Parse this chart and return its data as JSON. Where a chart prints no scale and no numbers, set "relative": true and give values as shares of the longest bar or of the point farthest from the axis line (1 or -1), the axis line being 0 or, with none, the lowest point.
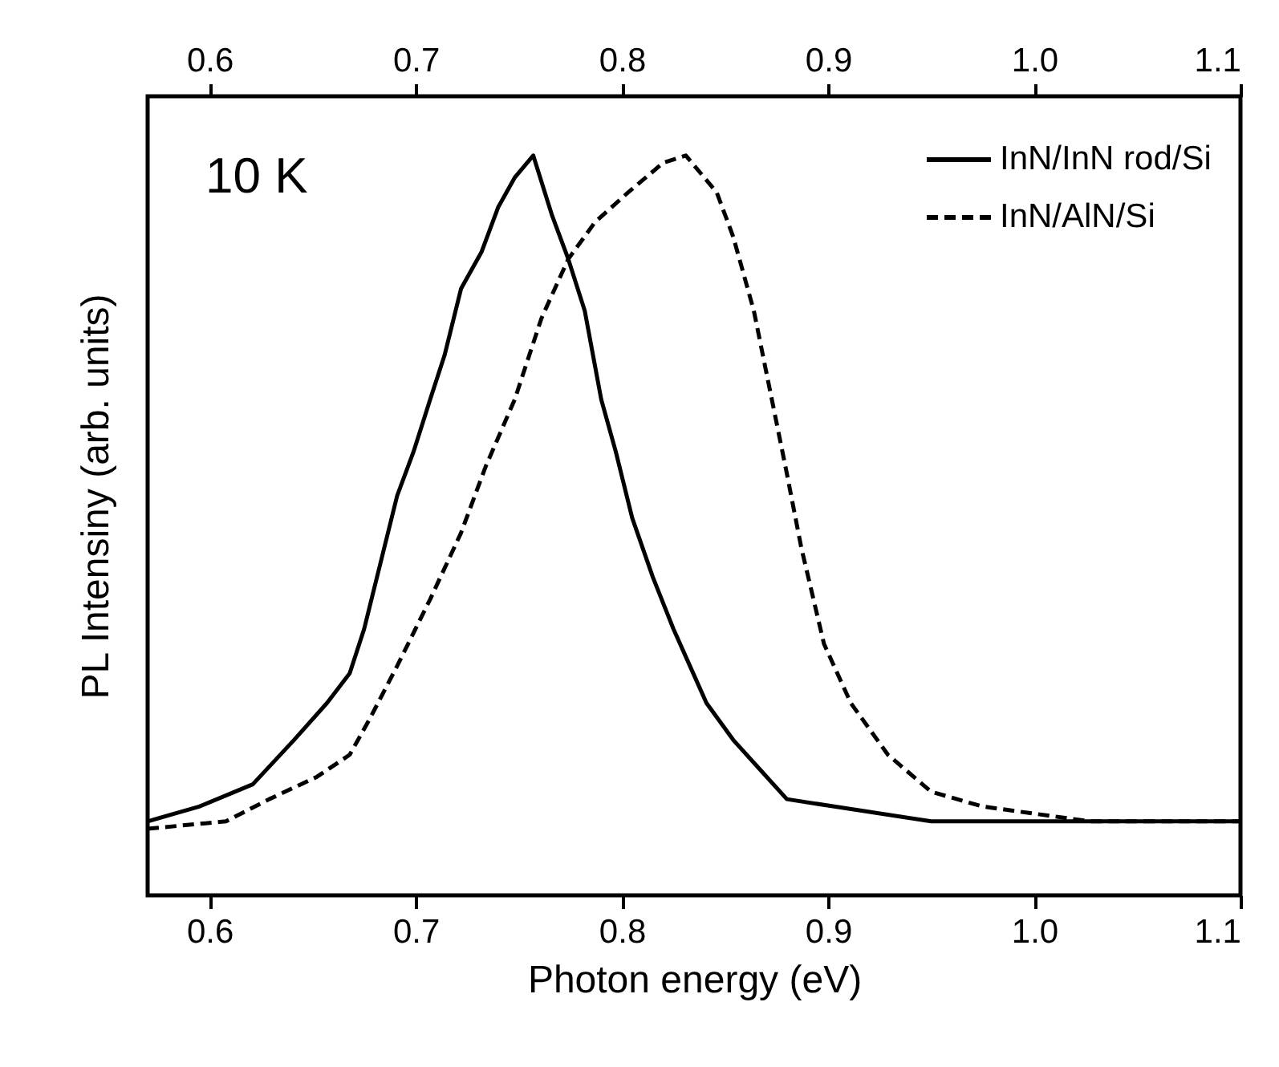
{
  "chart_data": {
    "type": "line",
    "relative": true,
    "xlabel": "Photon energy (eV)",
    "ylabel": "PL Intensiny (arb. units)",
    "annotations": [
      "10 K"
    ],
    "xlim": [
      0.57,
      1.1
    ],
    "xticks": [
      0.6,
      0.7,
      0.8,
      0.9,
      {
        "value": 1,
        "label": "1.0"
      },
      1.1
    ],
    "x2lim": [
      0.57,
      1.1
    ],
    "x2ticks": [
      0.6,
      0.7,
      0.8,
      0.9,
      {
        "value": 1,
        "label": "1.0"
      },
      1.1
    ],
    "tick_labels": "x",
    "legend": "top right",
    "marker": "none",
    "series": [
      {
        "name": "InN/InN rod/Si",
        "color": "#000000",
        "line_style": "solid",
        "x": [
          0.57,
          0.595,
          0.621,
          0.641,
          0.657,
          0.668,
          0.675,
          0.683,
          0.691,
          0.699,
          0.707,
          0.714,
          0.722,
          0.732,
          0.74,
          0.748,
          0.757,
          0.766,
          0.774,
          0.782,
          0.79,
          0.797,
          0.805,
          0.815,
          0.825,
          0.833,
          0.841,
          0.854,
          0.867,
          0.88,
          0.903,
          0.95,
          1.002,
          1.053,
          1.1
        ],
        "values": [
          0.1,
          0.12,
          0.15,
          0.21,
          0.26,
          0.3,
          0.36,
          0.45,
          0.54,
          0.6,
          0.67,
          0.73,
          0.82,
          0.87,
          0.93,
          0.97,
          1.0,
          0.92,
          0.86,
          0.79,
          0.67,
          0.6,
          0.51,
          0.43,
          0.36,
          0.31,
          0.26,
          0.21,
          0.17,
          0.13,
          0.12,
          0.1,
          0.1,
          0.1,
          0.1
        ]
      },
      {
        "name": "InN/AlN/Si",
        "color": "#000000",
        "line_style": "dashed",
        "x": [
          0.57,
          0.608,
          0.629,
          0.652,
          0.668,
          0.678,
          0.691,
          0.707,
          0.722,
          0.734,
          0.748,
          0.761,
          0.774,
          0.787,
          0.803,
          0.82,
          0.831,
          0.846,
          0.854,
          0.864,
          0.872,
          0.88,
          0.887,
          0.898,
          0.911,
          0.929,
          0.95,
          0.975,
          1.027,
          1.1
        ],
        "values": [
          0.09,
          0.1,
          0.13,
          0.16,
          0.19,
          0.24,
          0.31,
          0.4,
          0.49,
          0.58,
          0.67,
          0.78,
          0.86,
          0.91,
          0.95,
          0.99,
          1.0,
          0.95,
          0.89,
          0.79,
          0.68,
          0.57,
          0.47,
          0.34,
          0.26,
          0.19,
          0.14,
          0.12,
          0.1,
          0.1
        ]
      }
    ]
  }
}
